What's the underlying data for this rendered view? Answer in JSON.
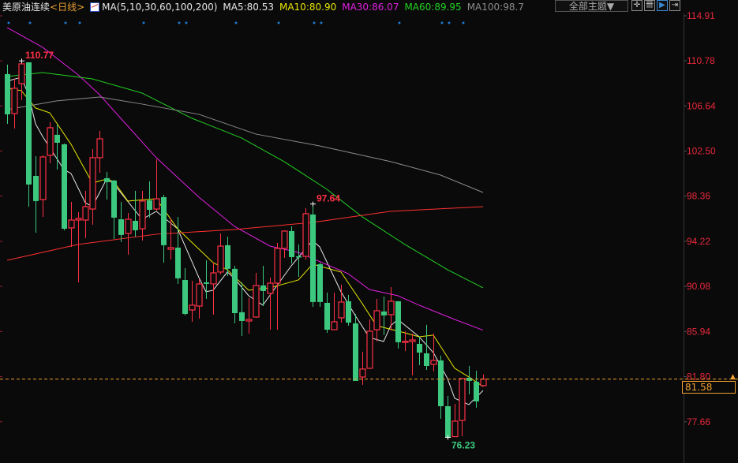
{
  "header": {
    "symbol": "美原油连续",
    "period": "<日线>",
    "ma_icon": "ma-indicator-icon",
    "ma_params": "MA(5,10,30,60,100,200)",
    "ma5": "MA5:80.53",
    "ma10": "MA10:80.90",
    "ma30": "MA30:86.07",
    "ma60": "MA60:89.95",
    "ma100": "MA100:98.7",
    "theme_button": "全部主题▼",
    "tools": [
      "crosshair-icon",
      "interval-stats-icon",
      "play-icon",
      "exit-icon"
    ]
  },
  "colors": {
    "background": "#0a0a0a",
    "up": "#ff3045",
    "down": "#3cc87e",
    "ma5": "#e8e8e8",
    "ma10": "#e6e600",
    "ma30": "#e020e0",
    "ma60": "#22d022",
    "ma100": "#8a8a8a",
    "ma200": "#ff3030",
    "last_price": "#f0a030",
    "axis_text": "#e8283c",
    "marker": "#1e78d0"
  },
  "chart_data": {
    "type": "candlestick",
    "title": "美原油连续",
    "period": "日线",
    "ylim": [
      73.88,
      114.91
    ],
    "y_ticks": [
      "114.91",
      "110.78",
      "106.64",
      "102.50",
      "98.36",
      "94.22",
      "90.08",
      "85.94",
      "81.80",
      "77.66"
    ],
    "ohlc_format": [
      "open",
      "high",
      "low",
      "close"
    ],
    "candles": [
      [
        109.56,
        110.43,
        105.0,
        105.87
      ],
      [
        105.94,
        109.12,
        104.57,
        108.26
      ],
      [
        108.69,
        110.77,
        107.17,
        110.5
      ],
      [
        110.64,
        110.64,
        97.4,
        99.43
      ],
      [
        100.22,
        102.03,
        95.01,
        97.91
      ],
      [
        98.05,
        102.11,
        96.46,
        101.96
      ],
      [
        102.11,
        105.14,
        101.38,
        104.64
      ],
      [
        103.99,
        104.93,
        100.8,
        103.26
      ],
      [
        103.12,
        103.19,
        95.23,
        95.37
      ],
      [
        95.45,
        97.84,
        93.71,
        96.17
      ],
      [
        96.17,
        96.89,
        90.45,
        96.32
      ],
      [
        96.17,
        98.85,
        94.51,
        97.4
      ],
      [
        97.18,
        102.68,
        95.74,
        101.89
      ],
      [
        101.89,
        104.35,
        100.51,
        103.62
      ],
      [
        100.01,
        100.59,
        98.05,
        99.65
      ],
      [
        99.79,
        99.86,
        94.43,
        96.39
      ],
      [
        96.24,
        97.84,
        94.15,
        94.8
      ],
      [
        94.94,
        96.82,
        92.99,
        96.24
      ],
      [
        96.1,
        98.85,
        94.65,
        95.23
      ],
      [
        95.37,
        98.85,
        94.29,
        97.91
      ],
      [
        97.98,
        99.72,
        96.39,
        97.11
      ],
      [
        97.18,
        101.74,
        97.04,
        98.12
      ],
      [
        98.27,
        98.49,
        92.26,
        93.86
      ],
      [
        93.49,
        96.32,
        92.55,
        93.64
      ],
      [
        93.64,
        96.46,
        90.31,
        90.82
      ],
      [
        90.67,
        91.76,
        87.42,
        87.56
      ],
      [
        87.92,
        90.6,
        86.84,
        88.36
      ],
      [
        88.28,
        90.74,
        87.13,
        90.31
      ],
      [
        90.45,
        92.48,
        88.94,
        90.31
      ],
      [
        90.31,
        92.26,
        87.49,
        91.32
      ],
      [
        91.4,
        94.94,
        91.18,
        93.78
      ],
      [
        93.86,
        94.65,
        91.03,
        91.69
      ],
      [
        91.69,
        91.97,
        86.69,
        87.63
      ],
      [
        87.71,
        90.45,
        85.53,
        86.91
      ],
      [
        86.91,
        89.01,
        85.75,
        87.05
      ],
      [
        87.27,
        91.32,
        87.2,
        90.17
      ],
      [
        90.17,
        91.97,
        88.28,
        89.66
      ],
      [
        89.44,
        90.89,
        86.11,
        90.38
      ],
      [
        90.38,
        94.07,
        86.11,
        93.57
      ],
      [
        93.57,
        95.23,
        92.7,
        95.16
      ],
      [
        95.16,
        95.59,
        92.19,
        92.77
      ],
      [
        92.84,
        93.93,
        90.96,
        92.77
      ],
      [
        92.84,
        97.26,
        92.55,
        96.75
      ],
      [
        96.68,
        97.64,
        88.21,
        88.65
      ],
      [
        92.12,
        92.26,
        88.21,
        88.65
      ],
      [
        88.57,
        89.51,
        85.82,
        86.11
      ],
      [
        86.11,
        89.51,
        86.11,
        86.84
      ],
      [
        87.2,
        90.24,
        86.76,
        88.65
      ],
      [
        88.72,
        89.3,
        86.48,
        86.76
      ],
      [
        86.69,
        87.56,
        81.41,
        81.41
      ],
      [
        81.77,
        84.09,
        81.05,
        82.5
      ],
      [
        82.57,
        87.05,
        82.5,
        85.97
      ],
      [
        86.11,
        88.94,
        85.03,
        87.85
      ],
      [
        87.78,
        89.15,
        85.61,
        87.42
      ],
      [
        87.49,
        90.02,
        86.04,
        88.72
      ],
      [
        88.72,
        88.72,
        84.38,
        84.96
      ],
      [
        85.03,
        85.97,
        84.16,
        85.05
      ],
      [
        85.03,
        85.75,
        81.92,
        85.17
      ],
      [
        84.81,
        85.46,
        82.86,
        84.01
      ],
      [
        83.94,
        86.55,
        82.42,
        82.78
      ],
      [
        82.93,
        85.75,
        82.28,
        83.29
      ],
      [
        83.29,
        83.73,
        77.94,
        79.09
      ],
      [
        79.09,
        80.04,
        76.23,
        76.23
      ],
      [
        76.3,
        79.31,
        76.28,
        77.72
      ],
      [
        77.79,
        81.63,
        76.35,
        81.63
      ],
      [
        81.7,
        82.78,
        80.18,
        81.41
      ],
      [
        81.34,
        82.35,
        78.95,
        79.53
      ],
      [
        80.98,
        82.01,
        80.9,
        81.58
      ]
    ],
    "moving_averages": [
      {
        "name": "MA5",
        "color_key": "ma5",
        "points": [
          [
            1,
            108.91
          ],
          [
            3,
            109.27
          ],
          [
            4,
            107.68
          ],
          [
            5,
            105.0
          ],
          [
            6,
            103.84
          ],
          [
            9,
            100.8
          ],
          [
            10,
            100.44
          ],
          [
            12,
            97.76
          ],
          [
            13,
            97.4
          ],
          [
            15,
            99.93
          ],
          [
            16,
            99.5
          ],
          [
            20,
            96.24
          ],
          [
            22,
            96.97
          ],
          [
            25,
            95.37
          ],
          [
            28,
            90.89
          ],
          [
            29,
            89.59
          ],
          [
            30,
            89.73
          ],
          [
            32,
            91.4
          ],
          [
            33,
            90.82
          ],
          [
            35,
            89.23
          ],
          [
            37,
            88.36
          ],
          [
            41,
            91.97
          ],
          [
            44,
            94.29
          ],
          [
            45,
            93.71
          ],
          [
            48,
            89.59
          ],
          [
            50,
            87.42
          ],
          [
            52,
            85.39
          ],
          [
            54,
            85.03
          ],
          [
            55,
            86.48
          ],
          [
            56,
            87.05
          ],
          [
            59,
            85.46
          ],
          [
            61,
            84.01
          ],
          [
            63,
            81.63
          ],
          [
            64,
            79.82
          ],
          [
            66,
            79.24
          ],
          [
            68,
            80.53
          ]
        ]
      },
      {
        "name": "MA10",
        "color_key": "ma10",
        "points": [
          [
            1,
            108.26
          ],
          [
            3,
            108.04
          ],
          [
            5,
            106.45
          ],
          [
            7,
            106.01
          ],
          [
            10,
            103.12
          ],
          [
            13,
            99.57
          ],
          [
            15,
            99.93
          ],
          [
            16,
            99.72
          ],
          [
            18,
            97.91
          ],
          [
            22,
            98.12
          ],
          [
            25,
            95.37
          ],
          [
            30,
            92.26
          ],
          [
            32,
            91.61
          ],
          [
            35,
            89.73
          ],
          [
            38,
            89.95
          ],
          [
            42,
            90.67
          ],
          [
            44,
            92.12
          ],
          [
            48,
            91.4
          ],
          [
            51,
            88.5
          ],
          [
            53,
            86.48
          ],
          [
            57,
            85.82
          ],
          [
            59,
            85.46
          ],
          [
            61,
            85.61
          ],
          [
            64,
            82.57
          ],
          [
            66,
            81.77
          ],
          [
            68,
            80.9
          ]
        ]
      },
      {
        "name": "MA30",
        "color_key": "ma30",
        "points": [
          [
            1,
            113.83
          ],
          [
            6,
            112.02
          ],
          [
            11,
            109.49
          ],
          [
            14,
            107.68
          ],
          [
            18,
            104.78
          ],
          [
            22,
            101.89
          ],
          [
            28,
            98.27
          ],
          [
            33,
            95.59
          ],
          [
            38,
            93.78
          ],
          [
            42,
            93.2
          ],
          [
            49,
            91.25
          ],
          [
            52,
            89.8
          ],
          [
            56,
            89.23
          ],
          [
            59,
            88.36
          ],
          [
            64,
            87.05
          ],
          [
            68,
            86.07
          ]
        ]
      },
      {
        "name": "MA60",
        "color_key": "ma60",
        "points": [
          [
            1,
            109.34
          ],
          [
            6,
            109.7
          ],
          [
            13,
            109.12
          ],
          [
            20,
            107.82
          ],
          [
            27,
            105.51
          ],
          [
            34,
            103.7
          ],
          [
            40,
            101.53
          ],
          [
            46,
            99.0
          ],
          [
            51,
            96.46
          ],
          [
            57,
            93.93
          ],
          [
            63,
            91.61
          ],
          [
            68,
            89.95
          ]
        ]
      },
      {
        "name": "MA100",
        "color_key": "ma100",
        "points": [
          [
            1,
            106.3
          ],
          [
            8,
            107.1
          ],
          [
            14,
            107.46
          ],
          [
            20,
            106.81
          ],
          [
            28,
            105.87
          ],
          [
            36,
            104.06
          ],
          [
            45,
            102.97
          ],
          [
            55,
            101.53
          ],
          [
            62,
            100.3
          ],
          [
            68,
            98.7
          ]
        ]
      },
      {
        "name": "MA200",
        "color_key": "ma200",
        "points": [
          [
            1,
            92.48
          ],
          [
            11,
            93.93
          ],
          [
            22,
            94.87
          ],
          [
            33,
            95.3
          ],
          [
            44,
            95.95
          ],
          [
            55,
            96.97
          ],
          [
            68,
            97.4
          ]
        ]
      }
    ],
    "event_marker_candles": [
      1,
      4,
      9,
      11,
      20,
      25,
      26,
      33,
      39,
      44,
      45,
      56,
      62,
      63,
      65
    ],
    "annotations": [
      {
        "text": "110.77",
        "candle": 3,
        "price": 110.77,
        "kind": "high"
      },
      {
        "text": "97.64",
        "candle": 44,
        "price": 97.64,
        "kind": "high"
      },
      {
        "text": "76.23",
        "candle": 63,
        "price": 76.23,
        "kind": "low"
      }
    ],
    "last_price": "81.58"
  }
}
